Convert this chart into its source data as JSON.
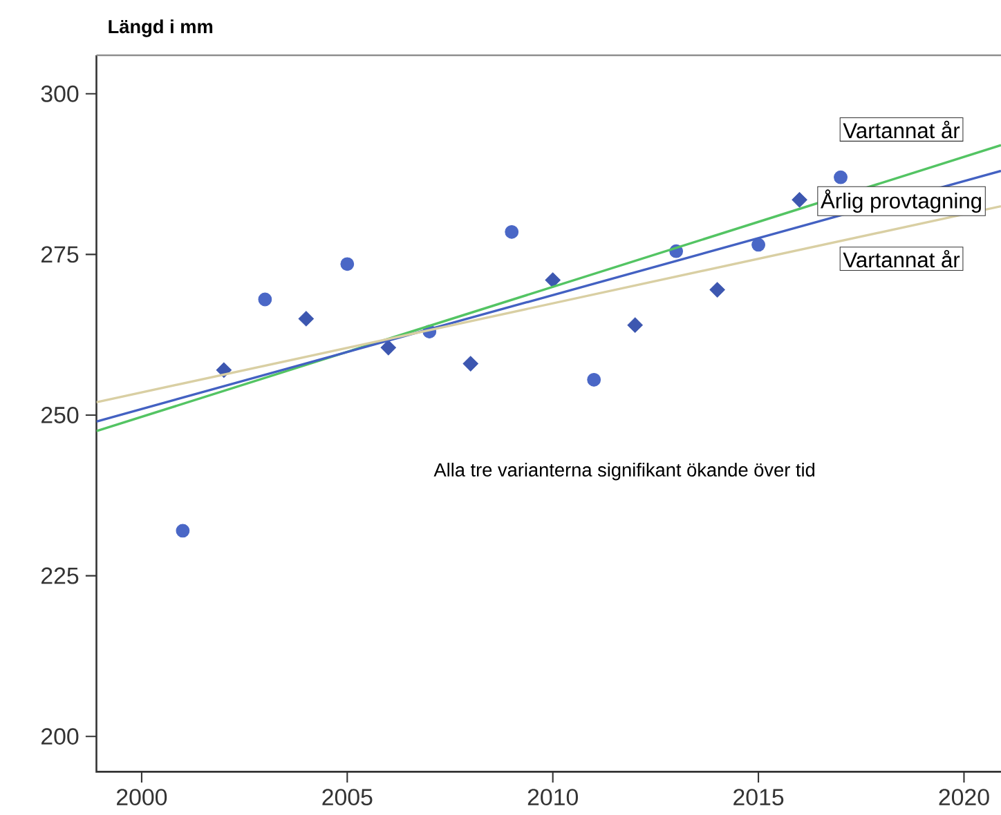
{
  "chart_data": {
    "type": "scatter",
    "ylabel": "Längd i mm",
    "xlim": [
      1998.9,
      2020.9
    ],
    "xticks": [
      2000,
      2005,
      2010,
      2015,
      2020
    ],
    "ylim": [
      194.5,
      306
    ],
    "yticks": [
      200,
      225,
      250,
      275,
      300
    ],
    "annotations": [
      "Alla tre varianterna signifikant ökande över tid"
    ],
    "series": [
      {
        "marker": "circle",
        "color": "#4a67c6",
        "x": [
          2001,
          2003,
          2005,
          2007,
          2009,
          2011,
          2013,
          2015,
          2017
        ],
        "values": [
          232,
          268,
          273.5,
          263,
          278.5,
          255.5,
          275.5,
          276.5,
          287
        ]
      },
      {
        "marker": "diamond",
        "color": "#3d57b0",
        "x": [
          2002,
          2004,
          2006,
          2008,
          2010,
          2012,
          2014,
          2016
        ],
        "values": [
          257,
          265,
          260.5,
          258,
          271,
          264,
          269.5,
          283.5
        ]
      },
      {
        "type": "line",
        "name": "Vartannat år",
        "color": "#53c463",
        "x": [
          1998.9,
          2020.9
        ],
        "values": [
          247.5,
          292
        ]
      },
      {
        "type": "line",
        "name": "Årlig provtagning",
        "color": "#4361c2",
        "x": [
          1998.9,
          2020.9
        ],
        "values": [
          249,
          288
        ]
      },
      {
        "type": "line",
        "name": "Vartannat år",
        "color": "#d9cfa3",
        "x": [
          1998.9,
          2020.9
        ],
        "values": [
          252,
          282.5
        ]
      }
    ]
  }
}
